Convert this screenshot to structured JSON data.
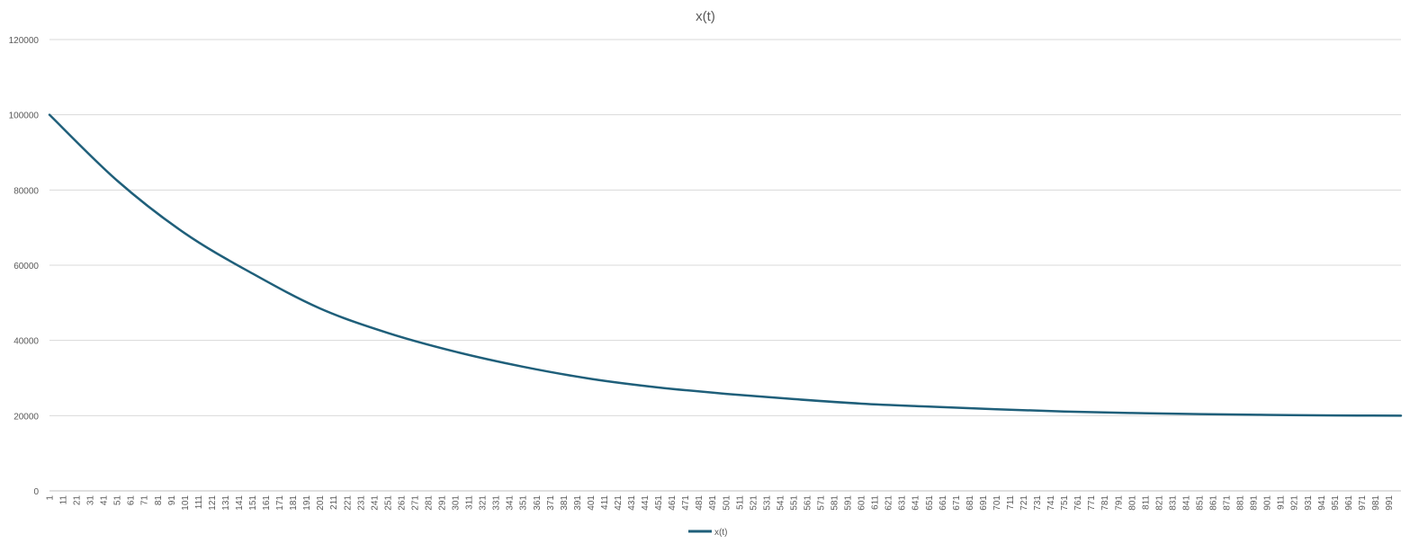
{
  "chart_data": {
    "type": "line",
    "title": "x(t)",
    "xlabel": "",
    "ylabel": "",
    "x_start": 1,
    "x_end": 1000,
    "x_tick_labels": [
      1,
      11,
      21,
      31,
      41,
      51,
      61,
      71,
      81,
      91,
      101,
      111,
      121,
      131,
      141,
      151,
      161,
      171,
      181,
      191,
      201,
      211,
      221,
      231,
      241,
      251,
      261,
      271,
      281,
      291,
      301,
      311,
      321,
      331,
      341,
      351,
      361,
      371,
      381,
      391,
      401,
      411,
      421,
      431,
      441,
      451,
      461,
      471,
      481,
      491,
      501,
      511,
      521,
      531,
      541,
      551,
      561,
      571,
      581,
      591,
      601,
      611,
      621,
      631,
      641,
      651,
      661,
      671,
      681,
      691,
      701,
      711,
      721,
      731,
      741,
      751,
      761,
      771,
      781,
      791,
      801,
      811,
      821,
      831,
      841,
      851,
      861,
      871,
      881,
      891,
      901,
      911,
      921,
      931,
      941,
      951,
      961,
      971,
      981,
      991
    ],
    "ylim": [
      0,
      120000
    ],
    "y_ticks": [
      0,
      20000,
      40000,
      60000,
      80000,
      100000,
      120000
    ],
    "grid": true,
    "legend_position": "bottom",
    "series": [
      {
        "name": "x(t)",
        "color": "#1f5f7a",
        "points": [
          [
            1,
            100000
          ],
          [
            51,
            82500
          ],
          [
            101,
            68500
          ],
          [
            151,
            57800
          ],
          [
            201,
            48500
          ],
          [
            251,
            42000
          ],
          [
            301,
            37000
          ],
          [
            351,
            33000
          ],
          [
            401,
            29800
          ],
          [
            451,
            27500
          ],
          [
            501,
            25800
          ],
          [
            551,
            24400
          ],
          [
            601,
            23200
          ],
          [
            651,
            22400
          ],
          [
            701,
            21700
          ],
          [
            751,
            21100
          ],
          [
            801,
            20700
          ],
          [
            851,
            20400
          ],
          [
            901,
            20200
          ],
          [
            951,
            20050
          ],
          [
            1000,
            20000
          ]
        ]
      }
    ]
  }
}
